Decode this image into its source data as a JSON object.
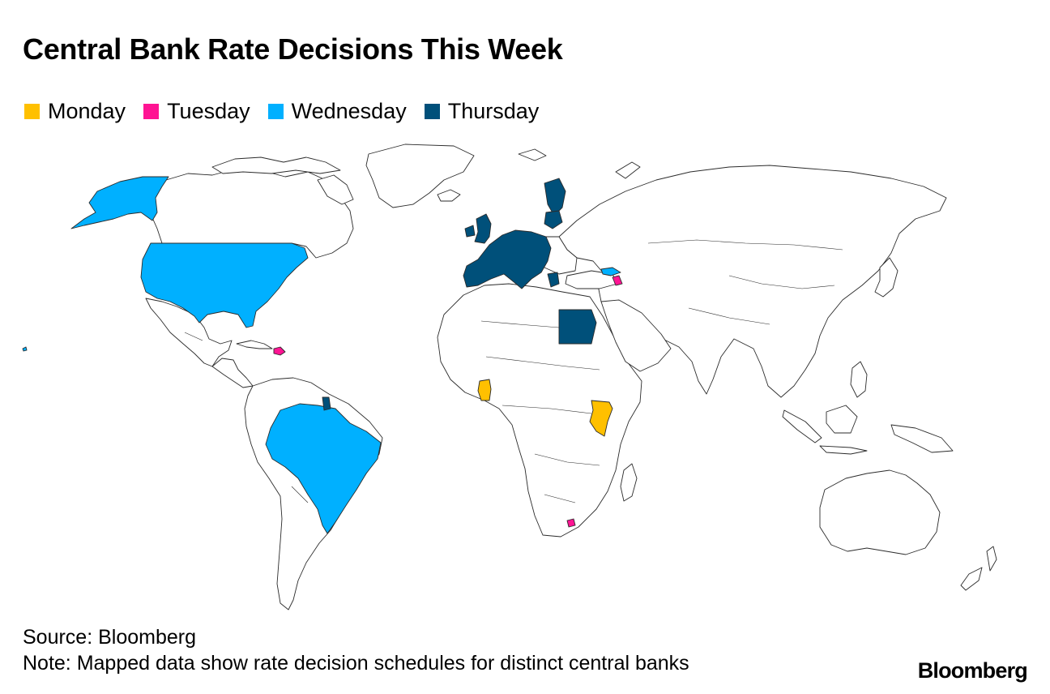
{
  "title": "Central Bank Rate Decisions This Week",
  "legend": [
    {
      "label": "Monday",
      "color": "#ffc000"
    },
    {
      "label": "Tuesday",
      "color": "#ff1493"
    },
    {
      "label": "Wednesday",
      "color": "#00b0ff"
    },
    {
      "label": "Thursday",
      "color": "#00507a"
    }
  ],
  "colors": {
    "land": "#ffffff",
    "border": "#2b2b2b"
  },
  "highlighted_countries": {
    "Monday": [
      "Ghana",
      "Kenya"
    ],
    "Tuesday": [
      "Dominican Republic",
      "Armenia",
      "Lesotho"
    ],
    "Wednesday": [
      "United States",
      "Brazil",
      "Georgia"
    ],
    "Thursday": [
      "Euro Area",
      "United Kingdom",
      "Norway",
      "Sweden",
      "Finland",
      "Egypt",
      "Suriname"
    ]
  },
  "footer": {
    "source": "Source: Bloomberg",
    "note": "Note: Mapped data show rate decision schedules for distinct central banks"
  },
  "brand": "Bloomberg"
}
